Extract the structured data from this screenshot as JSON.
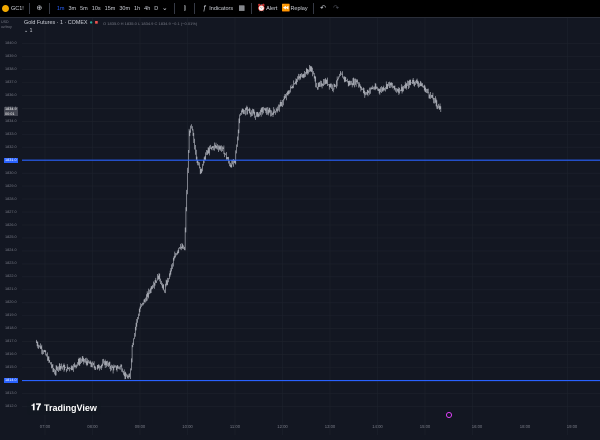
{
  "toolbar": {
    "symbol": "GC1!",
    "intervals": [
      "1m",
      "3m",
      "5m",
      "10s",
      "15m",
      "30m",
      "1h",
      "4h",
      "D"
    ],
    "active_interval": "1m",
    "indicators_label": "Indicators",
    "alert_label": "Alert",
    "replay_label": "Replay",
    "icons": [
      "plus-icon",
      "chevron-down-icon",
      "bar-style-icon",
      "indicators-icon",
      "layout-icon",
      "alert-icon",
      "replay-icon",
      "undo-icon",
      "redo-icon"
    ]
  },
  "axis": {
    "unit_currency": "USD",
    "unit_sub": "oz/troy"
  },
  "legend": {
    "title": "Gold Futures · 1 · COMEX",
    "ohlc": "O 1835.0  H 1835.0  L 1834.9  C 1834.9  −0.1 (−0.01%)",
    "secondary": "1"
  },
  "chart_data": {
    "type": "candlestick",
    "title": "Gold Futures · 1 · COMEX",
    "y_ticks": [
      1840.0,
      1839.0,
      1838.0,
      1837.0,
      1836.0,
      1835.0,
      1834.0,
      1833.0,
      1832.0,
      1831.0,
      1830.0,
      1829.0,
      1828.0,
      1827.0,
      1826.0,
      1825.0,
      1824.0,
      1823.0,
      1822.0,
      1821.0,
      1820.0,
      1819.0,
      1818.0,
      1817.0,
      1816.0,
      1815.0,
      1814.0,
      1813.0,
      1812.0
    ],
    "x_ticks": [
      "07:00",
      "08:00",
      "09:00",
      "10:00",
      "11:00",
      "12:00",
      "13:00",
      "14:00",
      "15:00",
      "16:00",
      "18:00",
      "19:00"
    ],
    "ylim": [
      1811.5,
      1840.5
    ],
    "series": [
      {
        "points": [
          [
            "06:48",
            1817.0
          ],
          [
            "06:58",
            1816.3
          ],
          [
            "07:06",
            1815.4
          ],
          [
            "07:12",
            1814.6
          ],
          [
            "07:18",
            1815.2
          ],
          [
            "07:26",
            1814.9
          ],
          [
            "07:36",
            1815.1
          ],
          [
            "07:46",
            1815.6
          ],
          [
            "07:56",
            1815.3
          ],
          [
            "08:06",
            1815.0
          ],
          [
            "08:16",
            1815.4
          ],
          [
            "08:26",
            1814.9
          ],
          [
            "08:36",
            1815.1
          ],
          [
            "08:42",
            1814.3
          ],
          [
            "08:47",
            1814.2
          ],
          [
            "08:50",
            1816.6
          ],
          [
            "08:54",
            1818.1
          ],
          [
            "09:00",
            1819.6
          ],
          [
            "09:08",
            1820.4
          ],
          [
            "09:16",
            1821.4
          ],
          [
            "09:24",
            1822.1
          ],
          [
            "09:30",
            1820.9
          ],
          [
            "09:36",
            1821.9
          ],
          [
            "09:44",
            1823.6
          ],
          [
            "09:50",
            1824.4
          ],
          [
            "09:56",
            1824.1
          ],
          [
            "10:02",
            1833.1
          ],
          [
            "10:05",
            1833.6
          ],
          [
            "10:10",
            1831.6
          ],
          [
            "10:16",
            1830.1
          ],
          [
            "10:24",
            1831.6
          ],
          [
            "10:34",
            1832.1
          ],
          [
            "10:44",
            1831.9
          ],
          [
            "10:54",
            1830.6
          ],
          [
            "11:00",
            1830.9
          ],
          [
            "11:06",
            1834.6
          ],
          [
            "11:16",
            1834.9
          ],
          [
            "11:26",
            1834.4
          ],
          [
            "11:36",
            1834.9
          ],
          [
            "11:46",
            1834.6
          ],
          [
            "11:56",
            1835.1
          ],
          [
            "12:06",
            1836.1
          ],
          [
            "12:16",
            1837.1
          ],
          [
            "12:26",
            1837.6
          ],
          [
            "12:36",
            1838.1
          ],
          [
            "12:44",
            1836.6
          ],
          [
            "12:54",
            1837.1
          ],
          [
            "13:04",
            1836.6
          ],
          [
            "13:14",
            1837.6
          ],
          [
            "13:24",
            1836.9
          ],
          [
            "13:34",
            1837.1
          ],
          [
            "13:44",
            1836.1
          ],
          [
            "13:54",
            1836.6
          ],
          [
            "14:04",
            1836.4
          ],
          [
            "14:14",
            1836.9
          ],
          [
            "14:24",
            1836.4
          ],
          [
            "14:34",
            1836.6
          ],
          [
            "14:44",
            1837.1
          ],
          [
            "14:54",
            1836.9
          ],
          [
            "15:04",
            1836.2
          ],
          [
            "15:14",
            1835.4
          ],
          [
            "15:20",
            1834.9
          ]
        ]
      }
    ],
    "price_lines": [
      1831.0,
      1814.0
    ],
    "last_price": 1834.9,
    "grid": true
  },
  "badges": {
    "last_price": "1834.9",
    "last_time": "00:01",
    "line_upper": "1831.0",
    "line_lower": "1814.0"
  },
  "colors": {
    "background": "#131722",
    "line": "#2962ff",
    "candle": "#d1d4dc"
  },
  "brand": "TradingView"
}
